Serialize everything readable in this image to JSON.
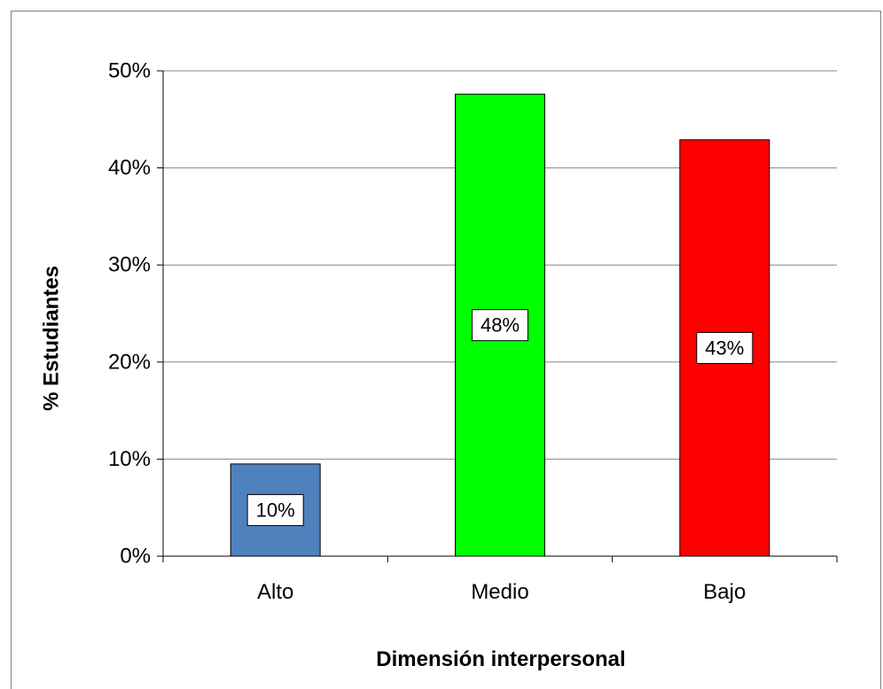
{
  "chart_data": {
    "type": "bar",
    "title": "",
    "xlabel": "Dimensión interpersonal",
    "ylabel": "% Estudiantes",
    "categories": [
      "Alto",
      "Medio",
      "Bajo"
    ],
    "values": [
      9.5,
      47.6,
      42.9
    ],
    "data_labels": [
      "10%",
      "48%",
      "43%"
    ],
    "colors": [
      "#4f81bd",
      "#00ff00",
      "#ff0000"
    ],
    "ylim": [
      0,
      50
    ],
    "yticks": [
      0,
      10,
      20,
      30,
      40,
      50
    ],
    "ytick_labels": [
      "0%",
      "10%",
      "20%",
      "30%",
      "40%",
      "50%"
    ],
    "grid": true,
    "legend": "none"
  }
}
